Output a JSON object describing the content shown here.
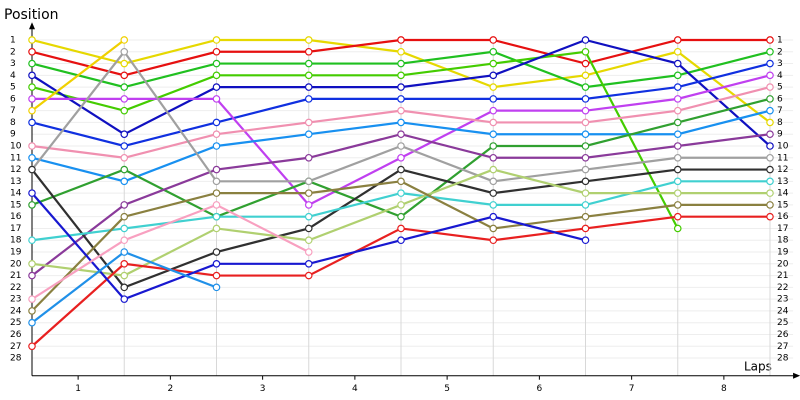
{
  "chart_data": {
    "type": "line",
    "y_label": "Position",
    "x_label": "Laps",
    "x": [
      0,
      1,
      2,
      3,
      4,
      5,
      6,
      7,
      8
    ],
    "xlim": [
      0,
      8.25
    ],
    "xticks": [
      {
        "value": 0.5,
        "label": "1"
      },
      {
        "value": 1.5,
        "label": "2"
      },
      {
        "value": 2.5,
        "label": "3"
      },
      {
        "value": 3.5,
        "label": "4"
      },
      {
        "value": 4.5,
        "label": "5"
      },
      {
        "value": 5.5,
        "label": "6"
      },
      {
        "value": 6.5,
        "label": "7"
      },
      {
        "value": 7.5,
        "label": "8"
      }
    ],
    "ylim": [
      29.5,
      0
    ],
    "yticks": [
      1,
      2,
      3,
      4,
      5,
      6,
      7,
      8,
      9,
      10,
      11,
      12,
      13,
      14,
      15,
      16,
      17,
      18,
      19,
      20,
      21,
      22,
      23,
      24,
      25,
      26,
      27,
      28
    ],
    "grid": true,
    "series": [
      {
        "color": "#e6d800",
        "values": [
          1,
          3,
          1,
          1,
          2,
          5,
          4,
          2,
          8
        ]
      },
      {
        "color": "#e61010",
        "values": [
          2,
          4,
          2,
          2,
          1,
          1,
          3,
          1,
          1
        ]
      },
      {
        "color": "#20c020",
        "values": [
          3,
          5,
          3,
          3,
          3,
          2,
          5,
          4,
          2
        ]
      },
      {
        "color": "#44cc00",
        "values": [
          5,
          7,
          4,
          4,
          4,
          3,
          2,
          17,
          null
        ]
      },
      {
        "color": "#1010c0",
        "values": [
          4,
          9,
          5,
          5,
          5,
          4,
          1,
          3,
          10
        ]
      },
      {
        "color": "#1030e0",
        "values": [
          8,
          10,
          8,
          6,
          6,
          6,
          6,
          5,
          3
        ]
      },
      {
        "color": "#c040f0",
        "values": [
          6,
          6,
          6,
          15,
          11,
          7,
          7,
          6,
          4
        ]
      },
      {
        "color": "#f090b0",
        "values": [
          10,
          11,
          9,
          8,
          7,
          8,
          8,
          7,
          5
        ]
      },
      {
        "color": "#1890f0",
        "values": [
          11,
          13,
          10,
          9,
          8,
          9,
          9,
          9,
          7
        ]
      },
      {
        "color": "#30a030",
        "values": [
          15,
          12,
          16,
          13,
          16,
          10,
          10,
          8,
          6
        ]
      },
      {
        "color": "#8a3a9a",
        "values": [
          21,
          15,
          12,
          11,
          9,
          11,
          11,
          10,
          9
        ]
      },
      {
        "color": "#a0a0a0",
        "values": [
          12,
          2,
          13,
          13,
          10,
          13,
          12,
          11,
          11
        ]
      },
      {
        "color": "#303030",
        "values": [
          12,
          22,
          19,
          17,
          12,
          14,
          13,
          12,
          12
        ]
      },
      {
        "color": "#40d0d0",
        "values": [
          18,
          17,
          16,
          16,
          14,
          15,
          15,
          13,
          13
        ]
      },
      {
        "color": "#b0d070",
        "values": [
          20,
          21,
          17,
          18,
          15,
          12,
          14,
          14,
          14
        ]
      },
      {
        "color": "#8a8040",
        "values": [
          24,
          16,
          14,
          14,
          13,
          17,
          16,
          15,
          15
        ]
      },
      {
        "color": "#e82020",
        "values": [
          27,
          20,
          21,
          21,
          17,
          18,
          17,
          16,
          16
        ]
      },
      {
        "color": "#1818d0",
        "values": [
          14,
          23,
          20,
          20,
          18,
          16,
          18,
          null,
          null
        ]
      },
      {
        "color": "#f8a0c0",
        "values": [
          23,
          18,
          15,
          19,
          null,
          null,
          null,
          null,
          null
        ]
      },
      {
        "color": "#2090e8",
        "values": [
          25,
          19,
          22,
          null,
          null,
          null,
          null,
          null,
          null
        ]
      },
      {
        "color": "#f0d000",
        "values": [
          7,
          1,
          null,
          null,
          null,
          null,
          null,
          null,
          null
        ]
      }
    ]
  }
}
